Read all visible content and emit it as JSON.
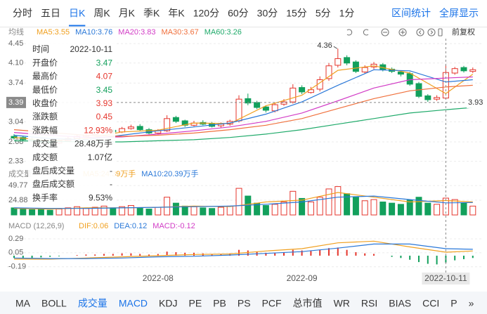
{
  "tabs": {
    "items": [
      "分时",
      "五日",
      "日K",
      "周K",
      "月K",
      "季K",
      "年K",
      "120分",
      "60分",
      "30分",
      "15分",
      "5分",
      "1分"
    ],
    "active": 2,
    "right": [
      "区间统计",
      "全屏显示"
    ]
  },
  "toolbar": {
    "adjust": "前复权"
  },
  "tooltip": {
    "rows": [
      {
        "label": "时间",
        "value": "2022-10-11"
      },
      {
        "label": "开盘价",
        "value": 3.47,
        "color": "#12a05c"
      },
      {
        "label": "最高价",
        "value": 4.07,
        "color": "#e5352c"
      },
      {
        "label": "最低价",
        "value": 3.45,
        "color": "#12a05c"
      },
      {
        "label": "收盘价",
        "value": 3.93,
        "color": "#e5352c"
      },
      {
        "label": "涨跌额",
        "value": 0.45,
        "color": "#e5352c"
      },
      {
        "label": "涨跌幅",
        "value": "12.93%",
        "color": "#e5352c"
      },
      {
        "label": "成交量",
        "value": "28.48万手"
      },
      {
        "label": "成交额",
        "value": "1.07亿"
      },
      {
        "label": "盘后成交量",
        "value": "-"
      },
      {
        "label": "盘后成交额",
        "value": "-"
      },
      {
        "label": "换手率",
        "value": "9.53%"
      }
    ]
  },
  "chart_data": [
    {
      "type": "candlestick",
      "title": "均线",
      "categories": [
        null,
        null,
        null,
        null,
        null,
        null,
        null,
        null,
        null,
        null,
        null,
        null,
        null,
        null,
        null,
        null,
        "2022-08",
        null,
        null,
        null,
        null,
        null,
        null,
        null,
        null,
        null,
        null,
        null,
        null,
        null,
        null,
        null,
        "2022-09",
        null,
        null,
        null,
        null,
        null,
        null,
        null,
        null,
        null,
        null,
        null,
        null,
        null,
        null,
        null,
        "2022-10-11",
        null,
        null,
        null
      ],
      "open": [
        2.78,
        2.76,
        2.73,
        2.71,
        2.69,
        2.66,
        2.7,
        2.74,
        2.78,
        2.81,
        2.85,
        2.89,
        2.86,
        2.92,
        2.96,
        2.9,
        2.84,
        2.88,
        3.12,
        3.06,
        2.98,
        3.03,
        3.01,
        2.97,
        3.0,
        3.06,
        3.46,
        3.39,
        3.31,
        3.24,
        3.36,
        3.4,
        3.66,
        3.57,
        3.63,
        3.82,
        4.06,
        4.2,
        4.12,
        3.94,
        4.03,
        4.07,
        3.99,
        3.94,
        3.91,
        3.73,
        3.51,
        3.45,
        3.47,
        3.92,
        4.02,
        3.95
      ],
      "high": [
        2.82,
        2.79,
        2.76,
        2.74,
        2.72,
        2.73,
        2.77,
        2.81,
        2.83,
        2.88,
        2.91,
        2.92,
        2.95,
        2.99,
        3.0,
        2.93,
        2.91,
        3.16,
        3.15,
        3.08,
        3.06,
        3.07,
        3.04,
        3.03,
        3.08,
        3.52,
        3.55,
        3.42,
        3.34,
        3.39,
        3.45,
        3.72,
        3.7,
        3.67,
        3.86,
        4.1,
        4.36,
        4.24,
        4.15,
        4.06,
        4.12,
        4.1,
        4.02,
        3.97,
        3.94,
        3.76,
        3.54,
        3.52,
        4.07,
        4.03,
        4.05,
        4.02
      ],
      "low": [
        2.72,
        2.7,
        2.68,
        2.66,
        2.63,
        2.64,
        2.68,
        2.72,
        2.76,
        2.79,
        2.83,
        2.84,
        2.84,
        2.9,
        2.88,
        2.82,
        2.81,
        2.86,
        3.02,
        2.95,
        2.96,
        2.98,
        2.94,
        2.94,
        2.97,
        3.03,
        3.34,
        3.27,
        3.21,
        3.21,
        3.33,
        3.37,
        3.54,
        3.55,
        3.59,
        3.78,
        4.02,
        4.06,
        3.92,
        3.91,
        3.99,
        3.95,
        3.92,
        3.86,
        3.69,
        3.47,
        3.4,
        3.42,
        3.45,
        3.89,
        3.93,
        3.92
      ],
      "close": [
        2.75,
        2.72,
        2.7,
        2.68,
        2.66,
        2.7,
        2.74,
        2.78,
        2.8,
        2.85,
        2.88,
        2.86,
        2.92,
        2.95,
        2.9,
        2.84,
        2.88,
        3.1,
        3.05,
        2.98,
        3.02,
        3.0,
        2.96,
        3.0,
        3.05,
        3.45,
        3.38,
        3.3,
        3.25,
        3.35,
        3.4,
        3.65,
        3.58,
        3.62,
        3.8,
        4.05,
        4.18,
        4.1,
        3.95,
        4.02,
        4.08,
        3.98,
        3.95,
        3.9,
        3.72,
        3.5,
        3.44,
        3.48,
        3.93,
        4.0,
        3.96,
        3.98
      ],
      "up_color": "#e5352c",
      "down_color": "#12a05c",
      "ylim": [
        2.25,
        4.54
      ],
      "yticks": [
        4.45,
        {
          "value": 4.1,
          "label": "4.10"
        },
        3.74,
        3.04,
        2.68,
        2.33
      ],
      "cursor": 3.39,
      "grid": true,
      "series": [
        {
          "name": "MA5:3.55",
          "color": "#f0a020",
          "x": [
            0,
            4,
            8,
            12,
            16,
            20,
            24,
            28,
            32,
            36,
            40,
            44,
            48,
            51
          ],
          "values": [
            2.76,
            2.7,
            2.74,
            2.86,
            2.89,
            3.02,
            3.01,
            3.33,
            3.52,
            3.97,
            4.05,
            3.92,
            3.55,
            3.9
          ]
        },
        {
          "name": "MA10:3.76",
          "color": "#2a78d8",
          "x": [
            0,
            4,
            8,
            12,
            16,
            20,
            24,
            28,
            32,
            36,
            40,
            44,
            48,
            51
          ],
          "values": [
            2.8,
            2.74,
            2.72,
            2.8,
            2.88,
            2.95,
            3.02,
            3.18,
            3.4,
            3.7,
            3.98,
            3.96,
            3.76,
            3.8
          ]
        },
        {
          "name": "MA20:3.83",
          "color": "#d23cc6",
          "x": [
            0,
            4,
            8,
            12,
            16,
            20,
            24,
            28,
            32,
            36,
            40,
            44,
            48,
            51
          ],
          "values": [
            2.85,
            2.8,
            2.76,
            2.77,
            2.82,
            2.88,
            2.95,
            3.05,
            3.2,
            3.42,
            3.65,
            3.8,
            3.83,
            3.85
          ]
        },
        {
          "name": "MA30:3.67",
          "color": "#f0703c",
          "x": [
            0,
            4,
            8,
            12,
            16,
            20,
            24,
            28,
            32,
            36,
            40,
            44,
            48,
            51
          ],
          "values": [
            2.9,
            2.85,
            2.8,
            2.78,
            2.8,
            2.84,
            2.9,
            2.98,
            3.1,
            3.28,
            3.46,
            3.6,
            3.67,
            3.7
          ]
        },
        {
          "name": "MA60:3.26",
          "color": "#1faa6a",
          "x": [
            0,
            4,
            8,
            12,
            16,
            20,
            24,
            28,
            32,
            36,
            40,
            44,
            48,
            51
          ],
          "values": [
            2.7,
            2.69,
            2.68,
            2.68,
            2.7,
            2.72,
            2.76,
            2.82,
            2.9,
            3.0,
            3.1,
            3.2,
            3.26,
            3.3
          ]
        }
      ]
    },
    {
      "type": "bar",
      "title": "成交量",
      "values": [
        12,
        10,
        9,
        11,
        8,
        10,
        12,
        14,
        11,
        13,
        15,
        12,
        14,
        16,
        12,
        10,
        13,
        30,
        20,
        15,
        14,
        12,
        11,
        13,
        15,
        45,
        32,
        20,
        16,
        18,
        22,
        40,
        28,
        22,
        30,
        44,
        48,
        36,
        30,
        24,
        26,
        22,
        20,
        18,
        25,
        30,
        20,
        18,
        28.48,
        26,
        20,
        15
      ],
      "up_color": "#e5352c",
      "down_color": "#12a05c",
      "ylim": [
        0,
        57
      ],
      "yticks": [
        24.88,
        49.77
      ],
      "grid": true,
      "series": [
        {
          "name": "MA5:24.39万手",
          "color": "#f0a020",
          "x": [
            0,
            4,
            8,
            12,
            16,
            20,
            24,
            28,
            32,
            36,
            40,
            44,
            48,
            51
          ],
          "values": [
            11,
            10,
            12,
            12,
            13,
            15,
            14,
            22,
            25,
            38,
            30,
            22,
            24.39,
            22
          ]
        },
        {
          "name": "MA10:20.39万手",
          "color": "#2a78d8",
          "x": [
            0,
            4,
            8,
            12,
            16,
            20,
            24,
            28,
            32,
            36,
            40,
            44,
            48,
            51
          ],
          "values": [
            12,
            11,
            11,
            12,
            13,
            14,
            15,
            18,
            22,
            30,
            32,
            26,
            20.39,
            21
          ]
        }
      ]
    },
    {
      "type": "bar",
      "title": "MACD (12,26,9)",
      "name": "MACD:-0.12",
      "name_color": "#d23cc6",
      "values": [
        -0.04,
        -0.05,
        -0.04,
        -0.03,
        -0.02,
        -0.01,
        0.0,
        0.01,
        0.02,
        0.02,
        0.03,
        0.03,
        0.04,
        0.04,
        0.03,
        0.02,
        0.03,
        0.07,
        0.06,
        0.05,
        0.05,
        0.04,
        0.03,
        0.03,
        0.04,
        0.1,
        0.09,
        0.07,
        0.05,
        0.05,
        0.06,
        0.1,
        0.09,
        0.08,
        0.1,
        0.13,
        0.14,
        0.1,
        0.06,
        0.04,
        0.03,
        0.0,
        -0.02,
        -0.04,
        -0.07,
        -0.11,
        -0.14,
        -0.15,
        -0.12,
        -0.08,
        -0.06,
        -0.04
      ],
      "up_color": "#e5352c",
      "down_color": "#12a05c",
      "ylim": [
        -0.29,
        0.41
      ],
      "yticks": [
        0.29,
        0.05,
        -0.19
      ],
      "grid": true,
      "series": [
        {
          "name": "DIF:0.06",
          "color": "#f0a020",
          "x": [
            0,
            4,
            8,
            12,
            16,
            20,
            24,
            28,
            32,
            36,
            40,
            44,
            48,
            51
          ],
          "values": [
            -0.06,
            -0.06,
            -0.04,
            -0.02,
            0.0,
            0.02,
            0.03,
            0.08,
            0.12,
            0.22,
            0.25,
            0.15,
            0.06,
            0.08
          ]
        },
        {
          "name": "DEA:0.12",
          "color": "#2a78d8",
          "x": [
            0,
            4,
            8,
            12,
            16,
            20,
            24,
            28,
            32,
            36,
            40,
            44,
            48,
            51
          ],
          "values": [
            -0.04,
            -0.05,
            -0.05,
            -0.04,
            -0.02,
            -0.01,
            0.01,
            0.04,
            0.07,
            0.13,
            0.2,
            0.2,
            0.12,
            0.11
          ]
        }
      ]
    }
  ],
  "bottom_tabs": {
    "items": [
      "MA",
      "BOLL",
      "成交量",
      "MACD",
      "KDJ",
      "PE",
      "PB",
      "PS",
      "PCF",
      "总市值",
      "WR",
      "RSI",
      "BIAS",
      "CCI",
      "P",
      "»"
    ],
    "active": [
      2,
      3
    ]
  }
}
